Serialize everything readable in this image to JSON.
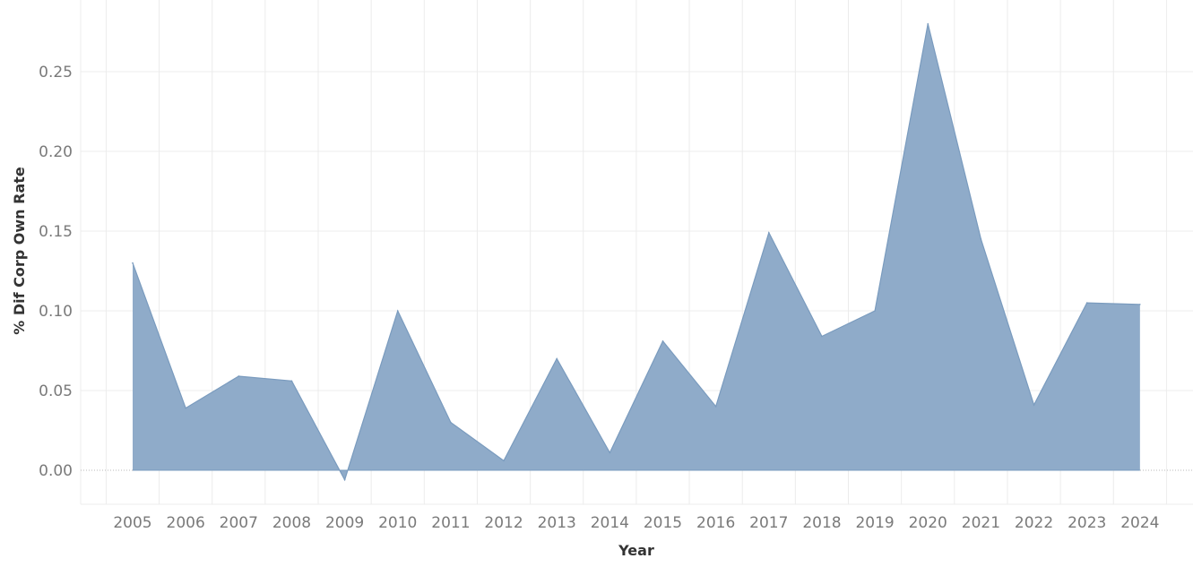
{
  "chart_data": {
    "type": "area",
    "xlabel": "Year",
    "ylabel": "% Dif Corp Own Rate",
    "ylim": [
      -0.02,
      0.29
    ],
    "yticks": [
      "0.00",
      "0.05",
      "0.10",
      "0.15",
      "0.20",
      "0.25"
    ],
    "grid": true,
    "categories": [
      "2005",
      "2006",
      "2007",
      "2008",
      "2009",
      "2010",
      "2011",
      "2012",
      "2013",
      "2014",
      "2015",
      "2016",
      "2017",
      "2018",
      "2019",
      "2020",
      "2021",
      "2022",
      "2023",
      "2024"
    ],
    "values": [
      0.13,
      0.039,
      0.059,
      0.056,
      -0.006,
      0.1,
      0.03,
      0.006,
      0.07,
      0.011,
      0.081,
      0.04,
      0.149,
      0.084,
      0.1,
      0.28,
      0.145,
      0.041,
      0.105,
      0.104
    ],
    "color": "#8fabc9",
    "line_color": "#7a9bbe"
  }
}
